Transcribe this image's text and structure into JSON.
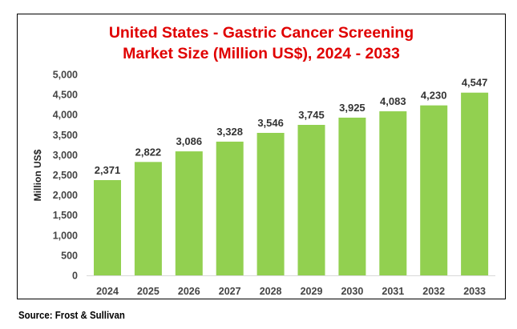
{
  "chart_data": {
    "type": "bar",
    "title_lines": [
      "United States - Gastric Cancer Screening",
      "Market Size (Million US$), 2024 - 2033"
    ],
    "xlabel": "",
    "ylabel": "Million US$",
    "categories": [
      "2024",
      "2025",
      "2026",
      "2027",
      "2028",
      "2029",
      "2030",
      "2031",
      "2032",
      "2033"
    ],
    "values": [
      2371,
      2822,
      3086,
      3328,
      3546,
      3745,
      3925,
      4083,
      4230,
      4547
    ],
    "data_labels": [
      "2,371",
      "2,822",
      "3,086",
      "3,328",
      "3,546",
      "3,745",
      "3,925",
      "4,083",
      "4,230",
      "4,547"
    ],
    "ylim": [
      0,
      5000
    ],
    "yticks": [
      "0",
      "500",
      "1,000",
      "1,500",
      "2,000",
      "2,500",
      "3,000",
      "3,500",
      "4,000",
      "4,500",
      "5,000"
    ],
    "grid": false,
    "legend": "none",
    "bar_color": "#92d050",
    "title_color": "#e00000"
  },
  "source": "Source: Frost & Sullivan"
}
